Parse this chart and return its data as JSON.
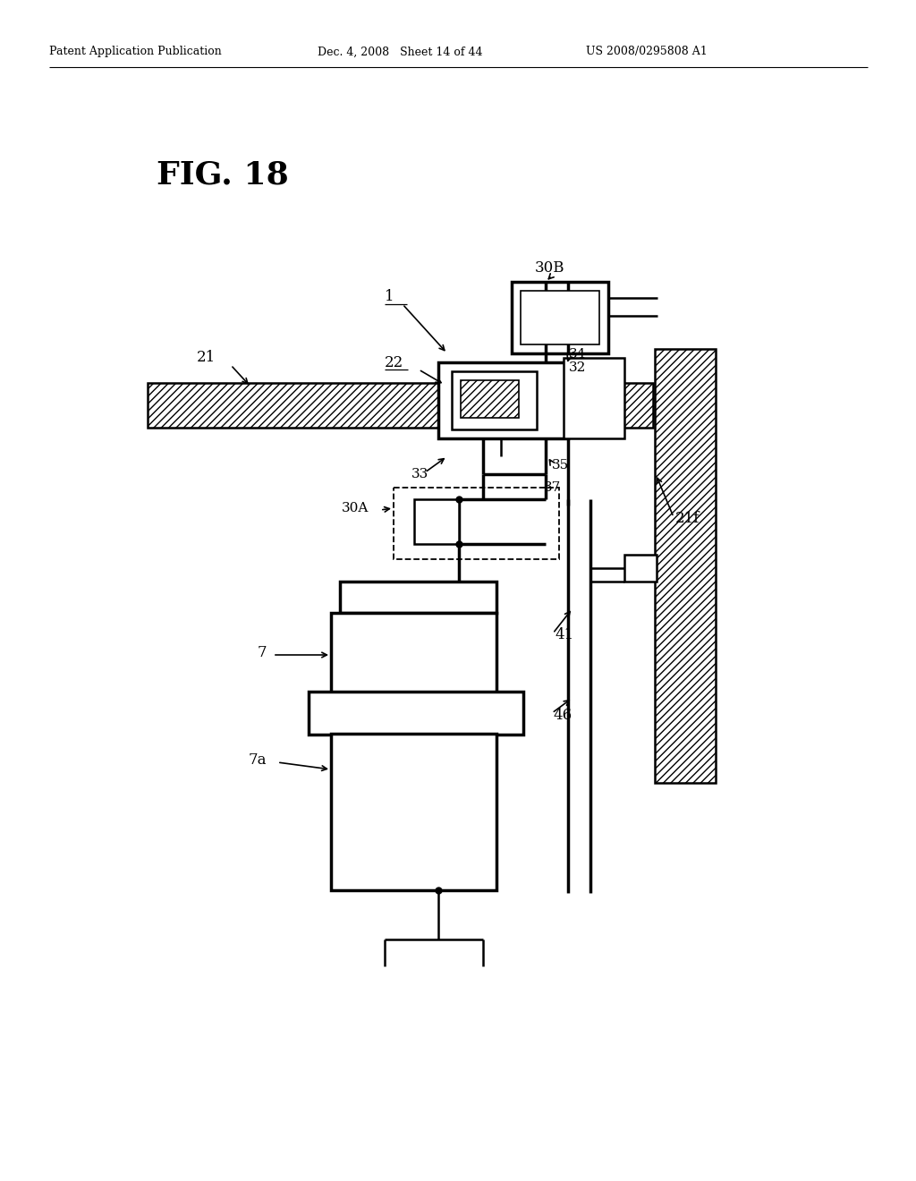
{
  "bg_color": "#ffffff",
  "lc": "#000000",
  "fig_title": "FIG. 18",
  "header_left": "Patent Application Publication",
  "header_mid": "Dec. 4, 2008   Sheet 14 of 44",
  "header_right": "US 2008/0295808 A1",
  "lw_thin": 1.2,
  "lw_med": 1.8,
  "lw_thick": 2.5
}
